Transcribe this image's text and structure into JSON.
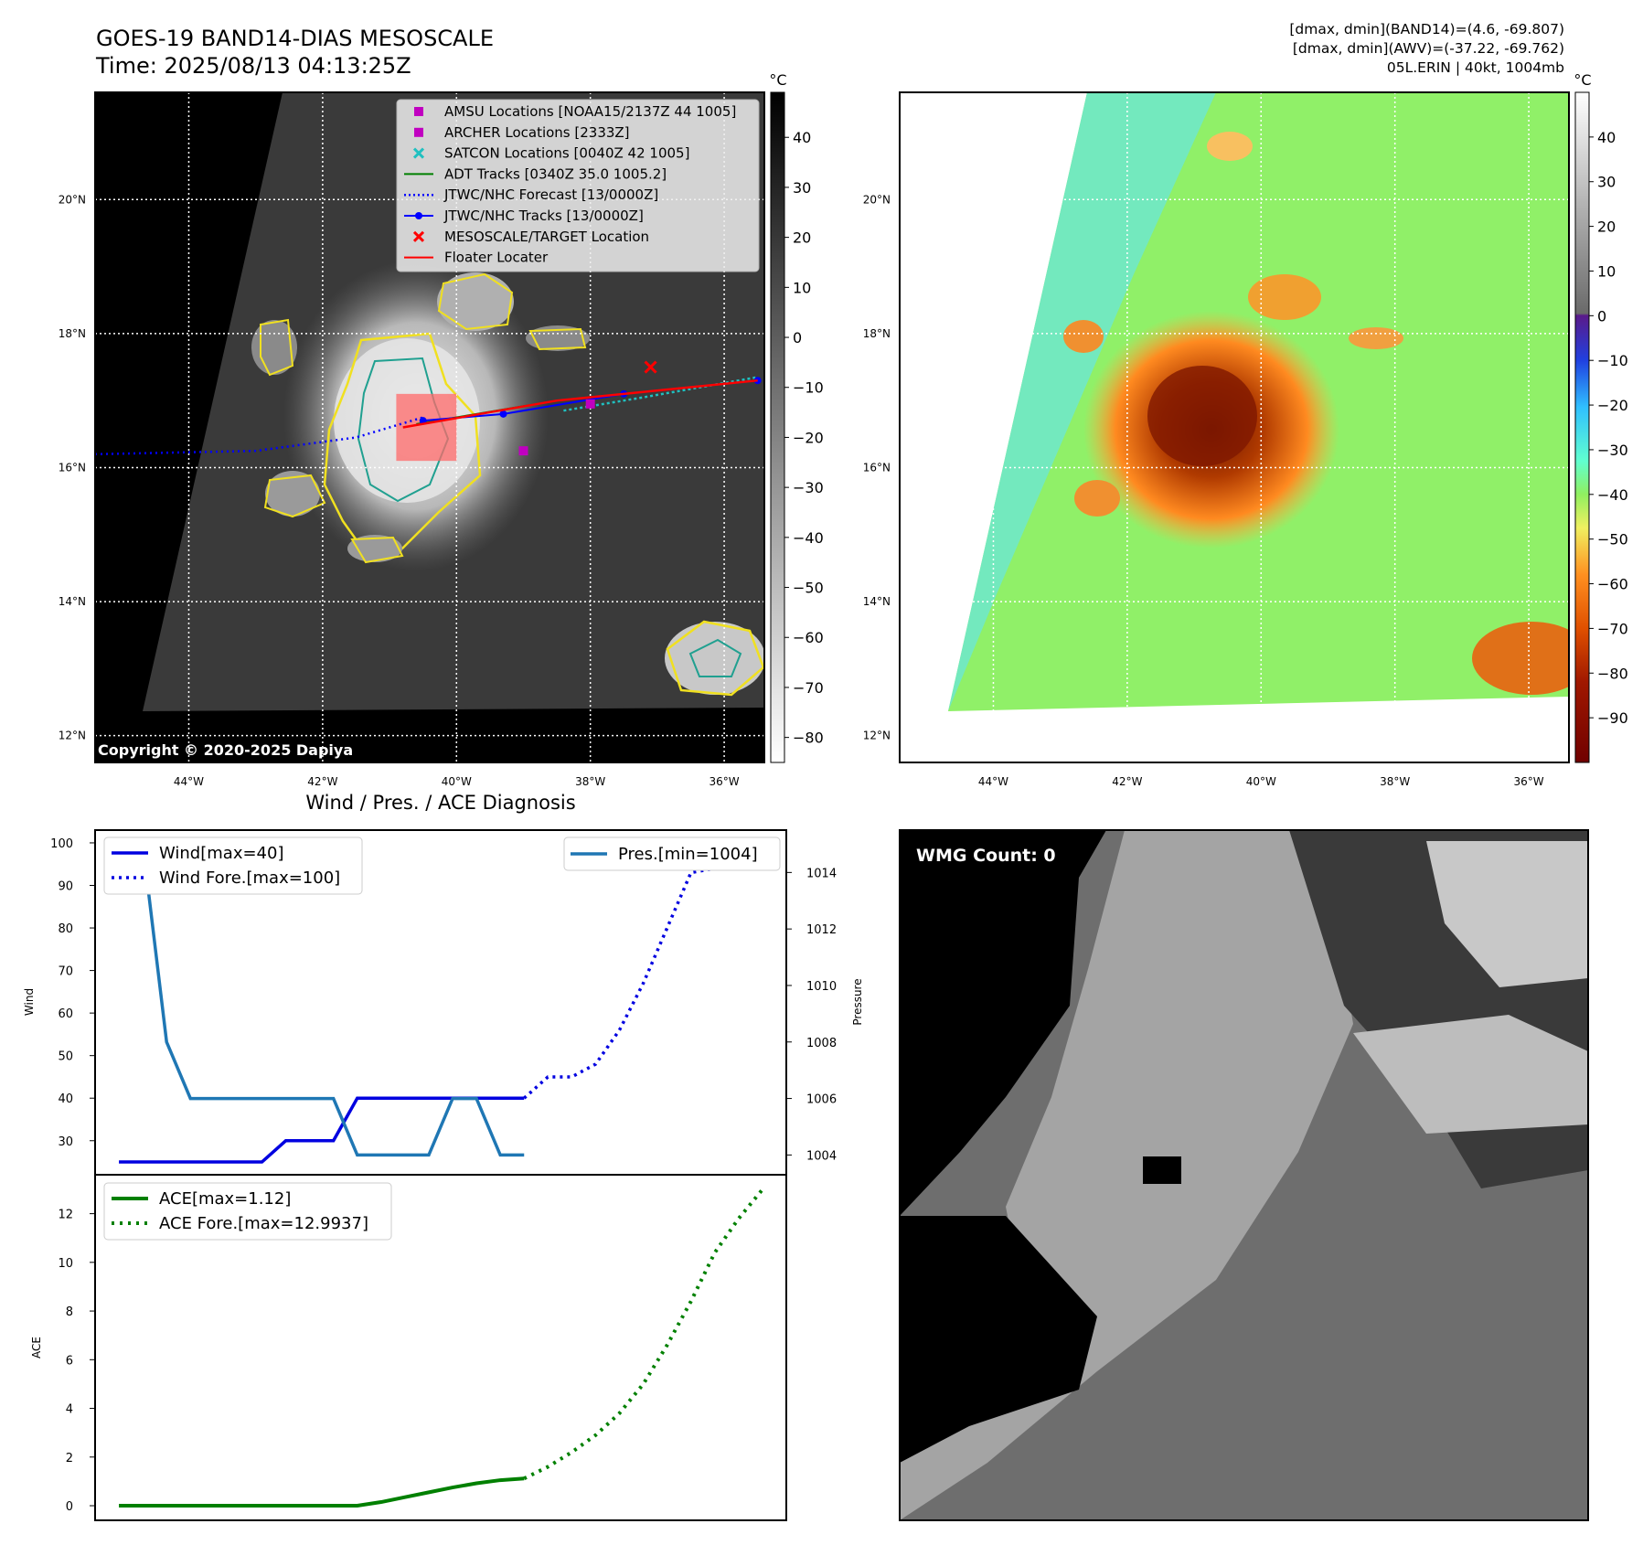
{
  "header": {
    "title_line1": "GOES-19 BAND14-DIAS MESOSCALE",
    "title_line2": "Time: 2025/08/13 04:13:25Z",
    "info_line1": "[dmax, dmin](BAND14)=(4.6, -69.807)",
    "info_line2": "[dmax, dmin](AWV)=(-37.22, -69.762)",
    "info_line3": "05L.ERIN | 40kt, 1004mb"
  },
  "copyright": "Copyright © 2020-2025 Dapiya",
  "wmg_label": "WMG Count: 0",
  "map": {
    "lat_labels": [
      "20°N",
      "18°N",
      "16°N",
      "14°N",
      "12°N"
    ],
    "lat_values": [
      20,
      18,
      16,
      14,
      12
    ],
    "lon_labels": [
      "44°W",
      "42°W",
      "40°W",
      "38°W",
      "36°W"
    ],
    "lon_values": [
      -44,
      -42,
      -40,
      -38,
      -36
    ],
    "lon_range": [
      -45.4,
      -35.4
    ],
    "lat_range": [
      11.6,
      21.6
    ],
    "legend": [
      {
        "label": "AMSU Locations [NOAA15/2137Z 44 1005]",
        "marker": "square",
        "color": "#c000c0"
      },
      {
        "label": "ARCHER Locations [2333Z]",
        "marker": "square",
        "color": "#c000c0"
      },
      {
        "label": "SATCON Locations [0040Z 42 1005]",
        "marker": "x",
        "color": "#20c0c0"
      },
      {
        "label": "ADT Tracks [0340Z 35.0 1005.2]",
        "marker": "line",
        "color": "#008000"
      },
      {
        "label": "JTWC/NHC Forecast [13/0000Z]",
        "marker": "dotted",
        "color": "#0000ff"
      },
      {
        "label": "JTWC/NHC Tracks [13/0000Z]",
        "marker": "line-dot",
        "color": "#0000ff"
      },
      {
        "label": "MESOSCALE/TARGET Location",
        "marker": "x",
        "color": "#ff0000"
      },
      {
        "label": "Floater Locater",
        "marker": "line",
        "color": "#ff0000"
      }
    ],
    "forecast_track": [
      [
        -45.4,
        16.2
      ],
      [
        -43,
        16.25
      ],
      [
        -41.5,
        16.45
      ],
      [
        -40.5,
        16.75
      ]
    ],
    "best_track": [
      [
        -40.5,
        16.7
      ],
      [
        -39.3,
        16.8
      ],
      [
        -37.5,
        17.1
      ],
      [
        -35.5,
        17.3
      ]
    ],
    "adt_track": [
      [
        -40.6,
        16.65
      ],
      [
        -38.5,
        17.0
      ],
      [
        -35.5,
        17.3
      ]
    ],
    "floater_track": [
      [
        -40.8,
        16.6
      ],
      [
        -38.5,
        17.0
      ],
      [
        -35.5,
        17.3
      ]
    ],
    "satcon_track": [
      [
        -38.4,
        16.85
      ],
      [
        -37.2,
        17.05
      ],
      [
        -35.5,
        17.35
      ]
    ],
    "amsu_points": [
      [
        -39.0,
        16.25
      ],
      [
        -38.0,
        16.95
      ]
    ],
    "target_point": [
      -37.1,
      17.5
    ],
    "floater_box": [
      [
        -40.9,
        16.1
      ],
      [
        -40.0,
        17.1
      ]
    ]
  },
  "colorbar_ir": {
    "unit": "°C",
    "ticks": [
      "40",
      "30",
      "20",
      "10",
      "0",
      "−10",
      "−20",
      "−30",
      "−40",
      "−50",
      "−60",
      "−70",
      "−80"
    ],
    "tick_values": [
      40,
      30,
      20,
      10,
      0,
      -10,
      -20,
      -30,
      -40,
      -50,
      -60,
      -70,
      -80
    ],
    "range": [
      -85,
      49
    ]
  },
  "colorbar_wv": {
    "unit": "°C",
    "ticks": [
      "40",
      "30",
      "20",
      "10",
      "0",
      "−10",
      "−20",
      "−30",
      "−40",
      "−50",
      "−60",
      "−70",
      "−80",
      "−90"
    ],
    "tick_values": [
      40,
      30,
      20,
      10,
      0,
      -10,
      -20,
      -30,
      -40,
      -50,
      -60,
      -70,
      -80,
      -90
    ],
    "range": [
      -100,
      50
    ]
  },
  "chart_data": [
    {
      "type": "line",
      "title": "Wind / Pres. / ACE Diagnosis",
      "ylabel": "Wind",
      "y2label": "Pressure",
      "ylim": [
        22,
        103
      ],
      "y2lim": [
        1003.3,
        1015.5
      ],
      "xlim": [
        -1,
        28
      ],
      "y_ticks": [
        "100",
        "90",
        "80",
        "70",
        "60",
        "50",
        "40",
        "30"
      ],
      "y_tick_values": [
        100,
        90,
        80,
        70,
        60,
        50,
        40,
        30
      ],
      "y2_ticks": [
        "1014",
        "1012",
        "1010",
        "1008",
        "1006",
        "1004"
      ],
      "y2_tick_values": [
        1014,
        1012,
        1010,
        1008,
        1006,
        1004
      ],
      "legend_left": [
        "Wind[max=40]",
        "Wind Fore.[max=100]"
      ],
      "legend_right": [
        "Pres.[min=1004]"
      ],
      "series": [
        {
          "name": "Wind[max=40]",
          "axis": "left",
          "style": "solid",
          "color": "#0000e0",
          "x": [
            0,
            1,
            2,
            3,
            4,
            5,
            6,
            7,
            8,
            9,
            10,
            11,
            12,
            13,
            14,
            15,
            16,
            17
          ],
          "values": [
            25,
            25,
            25,
            25,
            25,
            25,
            25,
            30,
            30,
            30,
            40,
            40,
            40,
            40,
            40,
            40,
            40,
            40
          ]
        },
        {
          "name": "Wind Fore.[max=100]",
          "axis": "left",
          "style": "dotted",
          "color": "#0000e0",
          "x": [
            17,
            18,
            19,
            20,
            21,
            22,
            23,
            24,
            25,
            26,
            27
          ],
          "values": [
            40,
            45,
            45,
            48,
            56,
            67,
            80,
            93,
            94,
            100,
            100
          ]
        },
        {
          "name": "Pres.[min=1004]",
          "axis": "right",
          "style": "solid",
          "color": "#1f77b4",
          "x": [
            0,
            1,
            2,
            3,
            4,
            5,
            6,
            7,
            8,
            9,
            10,
            11,
            12,
            13,
            14,
            15,
            16,
            17
          ],
          "values": [
            1015,
            1015,
            1008,
            1006,
            1006,
            1006,
            1006,
            1006,
            1006,
            1006,
            1004,
            1004,
            1004,
            1004,
            1006,
            1006,
            1004,
            1004
          ]
        }
      ]
    },
    {
      "type": "line",
      "ylabel": "ACE",
      "ylim": [
        -0.6,
        13.6
      ],
      "xlim": [
        -1,
        28
      ],
      "y_ticks": [
        "12",
        "10",
        "8",
        "6",
        "4",
        "2",
        "0"
      ],
      "y_tick_values": [
        12,
        10,
        8,
        6,
        4,
        2,
        0
      ],
      "legend": [
        "ACE[max=1.12]",
        "ACE Fore.[max=12.9937]"
      ],
      "series": [
        {
          "name": "ACE[max=1.12]",
          "style": "solid",
          "color": "#008000",
          "x": [
            0,
            1,
            2,
            3,
            4,
            5,
            6,
            7,
            8,
            9,
            10,
            11,
            12,
            13,
            14,
            15,
            16,
            17
          ],
          "values": [
            0,
            0,
            0,
            0,
            0,
            0,
            0,
            0,
            0,
            0,
            0,
            0.15,
            0.35,
            0.55,
            0.75,
            0.92,
            1.05,
            1.12
          ]
        },
        {
          "name": "ACE Fore.[max=12.9937]",
          "style": "dotted",
          "color": "#008000",
          "x": [
            17,
            18,
            19,
            20,
            21,
            22,
            23,
            24,
            25,
            26,
            27
          ],
          "values": [
            1.12,
            1.6,
            2.2,
            2.9,
            3.8,
            5.0,
            6.6,
            8.4,
            10.4,
            11.8,
            12.9937
          ]
        }
      ]
    }
  ]
}
